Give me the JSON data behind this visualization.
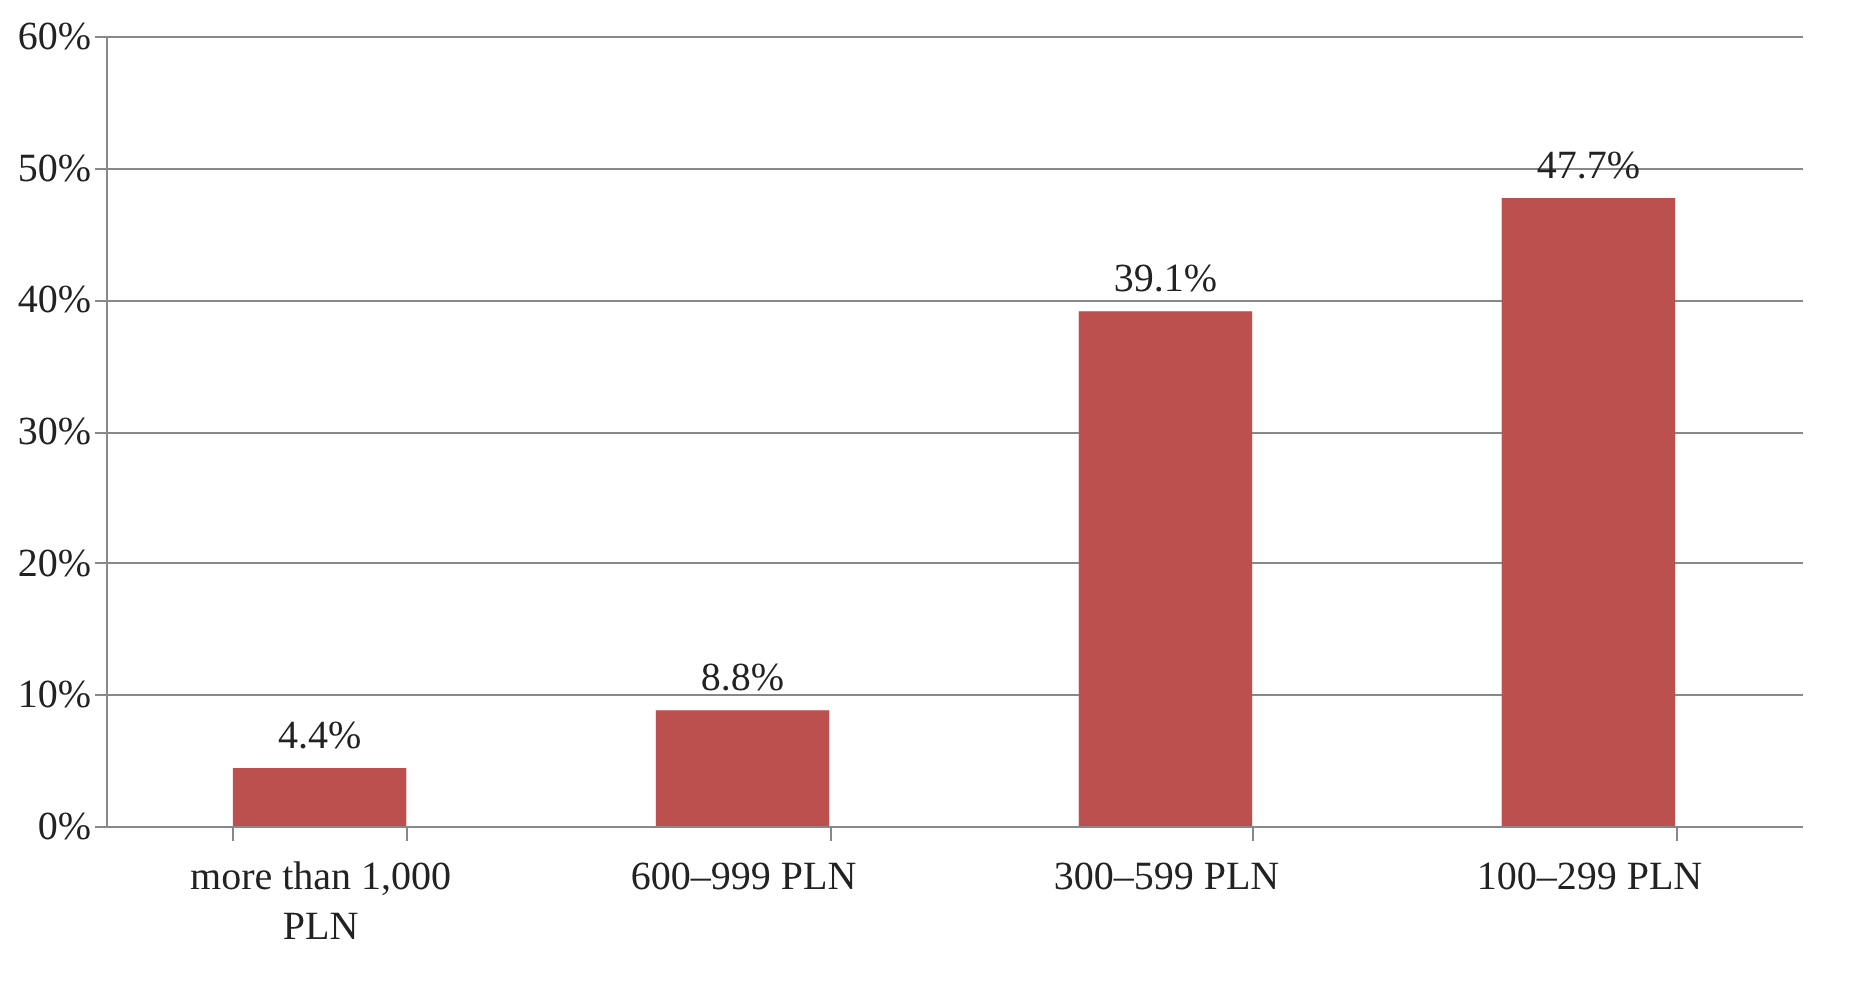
{
  "chart_data": {
    "type": "bar",
    "categories": [
      "more than 1,000 PLN",
      "600–999 PLN",
      "300–599 PLN",
      "100–299 PLN"
    ],
    "values": [
      4.4,
      8.8,
      39.1,
      47.7
    ],
    "color": "#bb504e",
    "value_labels": [
      "4.4%",
      "8.8%",
      "39.1%",
      "47.7%"
    ],
    "ylim": [
      0,
      60
    ],
    "yticks": [
      {
        "value": 0,
        "label": "0%"
      },
      {
        "value": 10,
        "label": "10%"
      },
      {
        "value": 20,
        "label": "20%"
      },
      {
        "value": 30,
        "label": "30%"
      },
      {
        "value": 40,
        "label": "40%"
      },
      {
        "value": 50,
        "label": "50%"
      },
      {
        "value": 60,
        "label": "60%"
      }
    ],
    "grid": "y"
  }
}
